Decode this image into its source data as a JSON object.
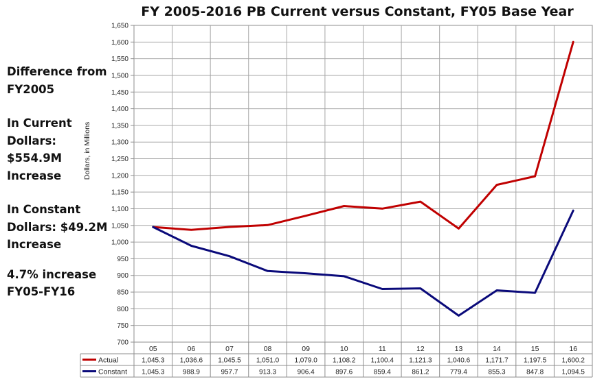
{
  "chart_data": {
    "type": "line",
    "title": "FY 2005-2016 PB Current versus Constant, FY05 Base Year",
    "ylabel": "Dollars, in Millions",
    "xlabel": "",
    "ylim": [
      700,
      1650
    ],
    "ytick_step": 50,
    "yticks": [
      "700",
      "750",
      "800",
      "850",
      "900",
      "950",
      "1,000",
      "1,050",
      "1,100",
      "1,150",
      "1,200",
      "1,250",
      "1,300",
      "1,350",
      "1,400",
      "1,450",
      "1,500",
      "1,550",
      "1,600",
      "1,650"
    ],
    "categories": [
      "05",
      "06",
      "07",
      "08",
      "09",
      "10",
      "11",
      "12",
      "13",
      "14",
      "15",
      "16"
    ],
    "grid": true,
    "data_table": true,
    "series": [
      {
        "name": "Actual",
        "color": "#c00000",
        "values": [
          1045.3,
          1036.6,
          1045.5,
          1051.0,
          1079.0,
          1108.2,
          1100.4,
          1121.3,
          1040.6,
          1171.7,
          1197.5,
          1600.2
        ],
        "labels": [
          "1,045.3",
          "1,036.6",
          "1,045.5",
          "1,051.0",
          "1,079.0",
          "1,108.2",
          "1,100.4",
          "1,121.3",
          "1,040.6",
          "1,171.7",
          "1,197.5",
          "1,600.2"
        ]
      },
      {
        "name": "Constant",
        "color": "#0a0a7a",
        "values": [
          1045.3,
          988.9,
          957.7,
          913.3,
          906.4,
          897.6,
          859.4,
          861.2,
          779.4,
          855.3,
          847.8,
          1094.5
        ],
        "labels": [
          "1,045.3",
          "988.9",
          "957.7",
          "913.3",
          "906.4",
          "897.6",
          "859.4",
          "861.2",
          "779.4",
          "855.3",
          "847.8",
          "1,094.5"
        ]
      }
    ]
  },
  "side_text": {
    "heading_line1": "Difference from",
    "heading_line2": "FY2005",
    "current_line1": "In Current",
    "current_line2": "Dollars:",
    "current_line3": "$554.9M",
    "current_line4": "Increase",
    "constant_line1": "In Constant",
    "constant_line2": "Dollars:  $49.2M",
    "constant_line3": "Increase",
    "pct_line1": "4.7% increase",
    "pct_line2": "FY05-FY16"
  }
}
